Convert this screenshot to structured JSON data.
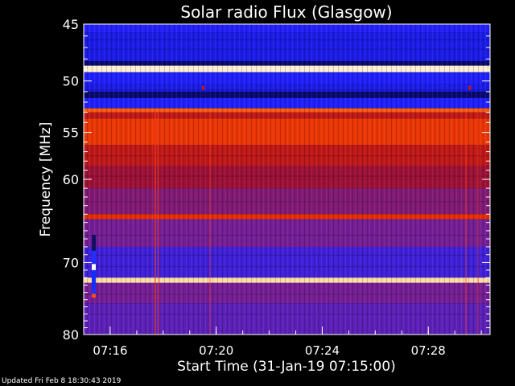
{
  "chart_data": {
    "type": "heatmap",
    "title": "Solar radio Flux (Glasgow)",
    "xlabel": "Start Time (31-Jan-19 07:15:00)",
    "ylabel": "Frequency [MHz]",
    "x_ticks": [
      "07:16",
      "07:20",
      "07:24",
      "07:28"
    ],
    "y_ticks": [
      "45",
      "50",
      "55",
      "60",
      "70",
      "80"
    ],
    "ylim": [
      45,
      80
    ],
    "y_scale": "log",
    "y_inverted": true,
    "colormap": [
      "#0a0a6e",
      "#2020ff",
      "#7020a0",
      "#a01030",
      "#e02000",
      "#ff6010",
      "#ffd080",
      "#ffffff"
    ],
    "bands": [
      {
        "f_from": 45.0,
        "f_to": 45.7,
        "level": 0.15
      },
      {
        "f_from": 45.7,
        "f_to": 48.2,
        "level": 0.12
      },
      {
        "f_from": 48.2,
        "f_to": 48.6,
        "level": 0.0
      },
      {
        "f_from": 48.6,
        "f_to": 49.2,
        "level": 0.95
      },
      {
        "f_from": 49.2,
        "f_to": 50.3,
        "level": 0.14
      },
      {
        "f_from": 50.3,
        "f_to": 51.0,
        "level": 0.12
      },
      {
        "f_from": 51.0,
        "f_to": 51.6,
        "level": 0.0
      },
      {
        "f_from": 51.6,
        "f_to": 52.6,
        "level": 0.14
      },
      {
        "f_from": 52.6,
        "f_to": 53.0,
        "level": 0.7
      },
      {
        "f_from": 53.0,
        "f_to": 53.6,
        "level": 0.5
      },
      {
        "f_from": 53.6,
        "f_to": 56.3,
        "level": 0.62
      },
      {
        "f_from": 56.3,
        "f_to": 58.5,
        "level": 0.5
      },
      {
        "f_from": 58.5,
        "f_to": 61.0,
        "level": 0.42
      },
      {
        "f_from": 61.0,
        "f_to": 64.0,
        "level": 0.34
      },
      {
        "f_from": 64.0,
        "f_to": 64.6,
        "level": 0.6
      },
      {
        "f_from": 64.6,
        "f_to": 68.0,
        "level": 0.3
      },
      {
        "f_from": 68.0,
        "f_to": 72.0,
        "level": 0.2
      },
      {
        "f_from": 72.0,
        "f_to": 72.7,
        "level": 0.9
      },
      {
        "f_from": 72.7,
        "f_to": 75.5,
        "level": 0.3
      },
      {
        "f_from": 75.5,
        "f_to": 80.0,
        "level": 0.25
      }
    ]
  },
  "footer": {
    "updated": "Updated Fri Feb  8 18:30:43 2019"
  }
}
